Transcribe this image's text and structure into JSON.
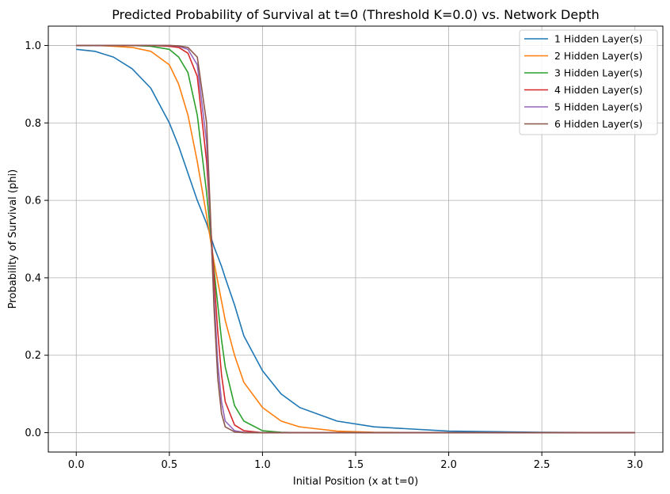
{
  "chart_data": {
    "type": "line",
    "title": "Predicted Probability of Survival at t=0 (Threshold K=0.0) vs. Network Depth",
    "xlabel": "Initial Position (x at t=0)",
    "ylabel": "Probability of Survival (phi)",
    "xlim": [
      -0.15,
      3.15
    ],
    "ylim": [
      -0.05,
      1.05
    ],
    "xticks": [
      0.0,
      0.5,
      1.0,
      1.5,
      2.0,
      2.5,
      3.0
    ],
    "xtick_labels": [
      "0.0",
      "0.5",
      "1.0",
      "1.5",
      "2.0",
      "2.5",
      "3.0"
    ],
    "yticks": [
      0.0,
      0.2,
      0.4,
      0.6,
      0.8,
      1.0
    ],
    "ytick_labels": [
      "0.0",
      "0.2",
      "0.4",
      "0.6",
      "0.8",
      "1.0"
    ],
    "grid": true,
    "legend_position": "top-right",
    "x": [
      0.0,
      0.1,
      0.2,
      0.3,
      0.4,
      0.5,
      0.55,
      0.6,
      0.65,
      0.7,
      0.72,
      0.74,
      0.76,
      0.78,
      0.8,
      0.85,
      0.9,
      1.0,
      1.1,
      1.2,
      1.4,
      1.6,
      2.0,
      2.5,
      3.0
    ],
    "series": [
      {
        "name": "1 Hidden Layer(s)",
        "color": "#1f77b4",
        "values": [
          0.99,
          0.985,
          0.97,
          0.94,
          0.89,
          0.8,
          0.74,
          0.67,
          0.6,
          0.54,
          0.51,
          0.48,
          0.455,
          0.43,
          0.4,
          0.33,
          0.25,
          0.16,
          0.1,
          0.065,
          0.03,
          0.015,
          0.004,
          0.001,
          0.0
        ]
      },
      {
        "name": "2 Hidden Layer(s)",
        "color": "#ff7f0e",
        "values": [
          1.0,
          1.0,
          0.998,
          0.995,
          0.985,
          0.95,
          0.9,
          0.82,
          0.7,
          0.56,
          0.5,
          0.44,
          0.39,
          0.34,
          0.29,
          0.2,
          0.13,
          0.065,
          0.03,
          0.015,
          0.004,
          0.001,
          0.0,
          0.0,
          0.0
        ]
      },
      {
        "name": "3 Hidden Layer(s)",
        "color": "#2ca02c",
        "values": [
          1.0,
          1.0,
          1.0,
          1.0,
          0.998,
          0.99,
          0.97,
          0.93,
          0.82,
          0.62,
          0.52,
          0.42,
          0.33,
          0.24,
          0.17,
          0.07,
          0.03,
          0.005,
          0.001,
          0.0,
          0.0,
          0.0,
          0.0,
          0.0,
          0.0
        ]
      },
      {
        "name": "4 Hidden Layer(s)",
        "color": "#d62728",
        "values": [
          1.0,
          1.0,
          1.0,
          1.0,
          1.0,
          0.998,
          0.995,
          0.98,
          0.92,
          0.7,
          0.55,
          0.4,
          0.26,
          0.15,
          0.08,
          0.02,
          0.005,
          0.0,
          0.0,
          0.0,
          0.0,
          0.0,
          0.0,
          0.0,
          0.0
        ]
      },
      {
        "name": "5 Hidden Layer(s)",
        "color": "#9467bd",
        "values": [
          1.0,
          1.0,
          1.0,
          1.0,
          1.0,
          1.0,
          0.998,
          0.99,
          0.95,
          0.75,
          0.55,
          0.35,
          0.18,
          0.08,
          0.03,
          0.005,
          0.001,
          0.0,
          0.0,
          0.0,
          0.0,
          0.0,
          0.0,
          0.0,
          0.0
        ]
      },
      {
        "name": "6 Hidden Layer(s)",
        "color": "#8c564b",
        "values": [
          1.0,
          1.0,
          1.0,
          1.0,
          1.0,
          1.0,
          0.999,
          0.995,
          0.97,
          0.8,
          0.57,
          0.32,
          0.14,
          0.05,
          0.015,
          0.002,
          0.0,
          0.0,
          0.0,
          0.0,
          0.0,
          0.0,
          0.0,
          0.0,
          0.0
        ]
      }
    ]
  }
}
